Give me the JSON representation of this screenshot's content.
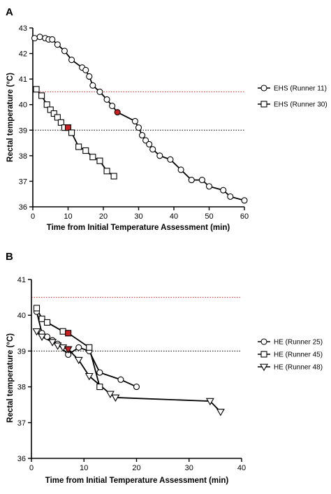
{
  "chart_data": [
    {
      "panel": "A",
      "type": "line",
      "xlabel": "Time from Initial Temperature Assessment (min)",
      "ylabel": "Rectal temperature (°C)",
      "xlim": [
        0,
        60
      ],
      "ylim": [
        36,
        43
      ],
      "xticks": [
        0,
        10,
        20,
        30,
        40,
        50,
        60
      ],
      "yticks": [
        36,
        37,
        38,
        39,
        40,
        41,
        42,
        43
      ],
      "reference_lines": [
        {
          "y": 40.5,
          "color": "#e02020",
          "style": "dotted"
        },
        {
          "y": 39.0,
          "color": "#000000",
          "style": "dotted"
        }
      ],
      "legend_position": "right",
      "series": [
        {
          "name": "EHS (Runner 11)",
          "marker": "circle",
          "x": [
            0.5,
            2,
            3.5,
            4.5,
            5.5,
            7,
            9,
            11,
            14,
            15,
            16,
            17,
            19,
            21,
            22.5,
            24,
            29,
            30,
            31,
            32,
            33,
            34,
            36,
            39,
            42,
            45,
            48,
            50,
            54,
            56,
            60
          ],
          "y": [
            42.6,
            42.65,
            42.6,
            42.55,
            42.55,
            42.35,
            42.1,
            41.75,
            41.45,
            41.35,
            41.1,
            40.75,
            40.5,
            40.2,
            39.95,
            39.7,
            39.35,
            39.1,
            38.8,
            38.6,
            38.45,
            38.25,
            38.0,
            37.85,
            37.45,
            37.05,
            37.05,
            36.8,
            36.65,
            36.4,
            36.25
          ],
          "highlighted_point_index": 15,
          "highlight_color": "#cc2020"
        },
        {
          "name": "EHS (Runner 30)",
          "marker": "square",
          "x": [
            1,
            2.5,
            4,
            5,
            6,
            7,
            8,
            9,
            10,
            11,
            13,
            15,
            17,
            19,
            21,
            23
          ],
          "y": [
            40.6,
            40.35,
            40.0,
            39.8,
            39.65,
            39.5,
            39.3,
            39.1,
            39.1,
            38.9,
            38.35,
            38.2,
            37.95,
            37.8,
            37.4,
            37.2
          ],
          "highlighted_point_index": 8,
          "highlight_color": "#cc2020"
        }
      ]
    },
    {
      "panel": "B",
      "type": "line",
      "xlabel": "Time from Initial Temperature Assessment (min)",
      "ylabel": "Rectal temperature (°C)",
      "xlim": [
        0,
        40
      ],
      "ylim": [
        36,
        41
      ],
      "xticks": [
        0,
        10,
        20,
        30,
        40
      ],
      "yticks": [
        36,
        37,
        38,
        39,
        40,
        41
      ],
      "reference_lines": [
        {
          "y": 40.5,
          "color": "#e02020",
          "style": "dotted"
        },
        {
          "y": 39.0,
          "color": "#000000",
          "style": "dotted"
        }
      ],
      "legend_position": "right",
      "series": [
        {
          "name": "HE (Runner 25)",
          "marker": "circle",
          "x": [
            1,
            2,
            3,
            4,
            5,
            7,
            9,
            11,
            13,
            17,
            20
          ],
          "y": [
            40.1,
            39.5,
            39.4,
            39.3,
            39.2,
            38.9,
            39.1,
            39.0,
            38.4,
            38.2,
            38.0
          ],
          "highlighted_point_index": null,
          "highlight_color": "#cc2020"
        },
        {
          "name": "HE (Runner 45)",
          "marker": "square",
          "x": [
            1,
            2,
            3,
            6,
            7,
            11,
            13
          ],
          "y": [
            40.2,
            39.9,
            39.8,
            39.55,
            39.5,
            39.1,
            38.0
          ],
          "highlighted_point_index": 4,
          "highlight_color": "#cc2020"
        },
        {
          "name": "HE (Runner 48)",
          "marker": "triangle-down",
          "x": [
            1,
            2,
            4,
            5,
            6,
            7,
            9,
            11,
            15,
            16,
            34,
            36
          ],
          "y": [
            39.55,
            39.4,
            39.25,
            39.15,
            39.1,
            39.05,
            38.75,
            38.3,
            37.8,
            37.7,
            37.6,
            37.3
          ],
          "highlighted_point_index": 5,
          "highlight_color": "#cc2020"
        }
      ]
    }
  ]
}
